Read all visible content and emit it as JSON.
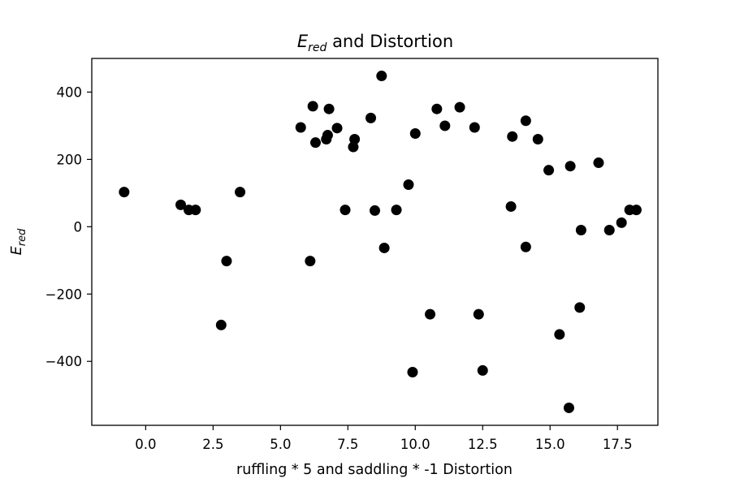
{
  "chart_data": {
    "type": "scatter",
    "title": {
      "main": "E",
      "sub": "red",
      "rest": " and Distortion"
    },
    "xlabel": "ruffling * 5 and saddling * -1 Distortion",
    "ylabel": {
      "main": "E",
      "sub": "red"
    },
    "xlim": [
      -2.0,
      19.0
    ],
    "ylim": [
      -590,
      500
    ],
    "xticks": [
      0.0,
      2.5,
      5.0,
      7.5,
      10.0,
      12.5,
      15.0,
      17.5
    ],
    "xtick_labels": [
      "0.0",
      "2.5",
      "5.0",
      "7.5",
      "10.0",
      "12.5",
      "15.0",
      "17.5"
    ],
    "yticks": [
      -400,
      -200,
      0,
      200,
      400
    ],
    "ytick_labels": [
      "−400",
      "−200",
      "0",
      "200",
      "400"
    ],
    "grid": false,
    "marker_color": "#000000",
    "points": [
      {
        "x": -0.8,
        "y": 103
      },
      {
        "x": 1.3,
        "y": 65
      },
      {
        "x": 1.6,
        "y": 50
      },
      {
        "x": 1.85,
        "y": 50
      },
      {
        "x": 2.8,
        "y": -292
      },
      {
        "x": 3.0,
        "y": -102
      },
      {
        "x": 3.5,
        "y": 103
      },
      {
        "x": 5.75,
        "y": 295
      },
      {
        "x": 6.1,
        "y": -102
      },
      {
        "x": 6.2,
        "y": 358
      },
      {
        "x": 6.3,
        "y": 250
      },
      {
        "x": 6.7,
        "y": 260
      },
      {
        "x": 6.75,
        "y": 272
      },
      {
        "x": 6.8,
        "y": 350
      },
      {
        "x": 7.1,
        "y": 293
      },
      {
        "x": 7.4,
        "y": 50
      },
      {
        "x": 7.7,
        "y": 237
      },
      {
        "x": 7.75,
        "y": 260
      },
      {
        "x": 8.35,
        "y": 323
      },
      {
        "x": 8.5,
        "y": 48
      },
      {
        "x": 8.75,
        "y": 448
      },
      {
        "x": 8.85,
        "y": -63
      },
      {
        "x": 9.3,
        "y": 50
      },
      {
        "x": 9.75,
        "y": 125
      },
      {
        "x": 9.9,
        "y": -432
      },
      {
        "x": 10.0,
        "y": 277
      },
      {
        "x": 10.55,
        "y": -260
      },
      {
        "x": 10.8,
        "y": 350
      },
      {
        "x": 11.1,
        "y": 300
      },
      {
        "x": 11.65,
        "y": 355
      },
      {
        "x": 12.2,
        "y": 295
      },
      {
        "x": 12.35,
        "y": -260
      },
      {
        "x": 12.5,
        "y": -427
      },
      {
        "x": 13.55,
        "y": 60
      },
      {
        "x": 13.6,
        "y": 268
      },
      {
        "x": 14.1,
        "y": 315
      },
      {
        "x": 14.1,
        "y": -60
      },
      {
        "x": 14.55,
        "y": 260
      },
      {
        "x": 14.95,
        "y": 168
      },
      {
        "x": 15.35,
        "y": -320
      },
      {
        "x": 15.7,
        "y": -538
      },
      {
        "x": 15.75,
        "y": 180
      },
      {
        "x": 16.1,
        "y": -240
      },
      {
        "x": 16.15,
        "y": -10
      },
      {
        "x": 16.8,
        "y": 190
      },
      {
        "x": 17.2,
        "y": -10
      },
      {
        "x": 17.65,
        "y": 12
      },
      {
        "x": 17.95,
        "y": 50
      },
      {
        "x": 18.2,
        "y": 50
      }
    ]
  }
}
